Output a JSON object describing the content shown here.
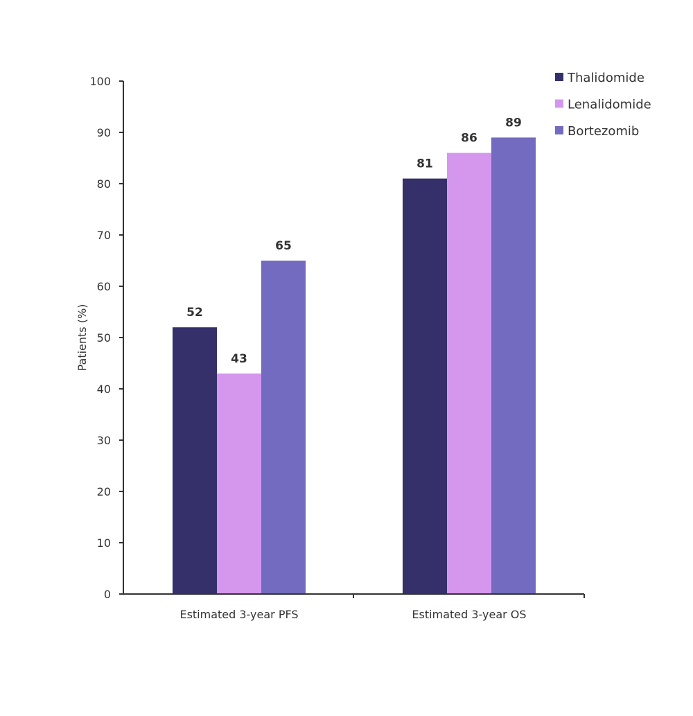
{
  "chart_data": {
    "type": "bar",
    "title": "",
    "xlabel": "",
    "ylabel": "Patients (%)",
    "ylim": [
      0,
      100
    ],
    "yticks": [
      0,
      10,
      20,
      30,
      40,
      50,
      60,
      70,
      80,
      90,
      100
    ],
    "grid": false,
    "legend_position": "top-right",
    "categories": [
      "Estimated 3-year PFS",
      "Estimated 3-year OS"
    ],
    "series": [
      {
        "name": "Thalidomide",
        "color": "#35306a",
        "values": [
          52,
          81
        ]
      },
      {
        "name": "Lenalidomide",
        "color": "#d597ee",
        "values": [
          43,
          86
        ]
      },
      {
        "name": "Bortezomib",
        "color": "#726bbf",
        "values": [
          65,
          89
        ]
      }
    ]
  }
}
